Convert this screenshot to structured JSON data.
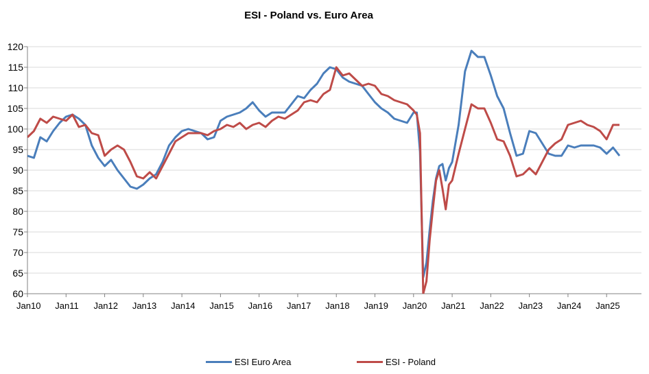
{
  "chart_data": {
    "type": "line",
    "title": "ESI - Poland vs. Euro Area",
    "xlabel": "",
    "ylabel": "",
    "ylim": [
      60,
      120
    ],
    "yticks": [
      60,
      65,
      70,
      75,
      80,
      85,
      90,
      95,
      100,
      105,
      110,
      115,
      120
    ],
    "xticks": [
      "Jan10",
      "Jan11",
      "Jan12",
      "Jan13",
      "Jan14",
      "Jan15",
      "Jan16",
      "Jan17",
      "Jan18",
      "Jan19",
      "Jan20",
      "Jan21",
      "Jan22",
      "Jan23",
      "Jan24",
      "Jan25"
    ],
    "x_start": "2010-01",
    "x_end": "2025-05",
    "grid": "horizontal",
    "legend_position": "bottom",
    "colors": {
      "ESI Euro Area": "#4a7ebb",
      "ESI - Poland": "#be4b48"
    },
    "series": [
      {
        "name": "ESI Euro Area",
        "points": [
          [
            "2010-01",
            93.5
          ],
          [
            "2010-03",
            93
          ],
          [
            "2010-05",
            98
          ],
          [
            "2010-07",
            97
          ],
          [
            "2010-09",
            99.5
          ],
          [
            "2010-11",
            101.5
          ],
          [
            "2011-01",
            103
          ],
          [
            "2011-03",
            103.5
          ],
          [
            "2011-05",
            102.5
          ],
          [
            "2011-07",
            101
          ],
          [
            "2011-09",
            96
          ],
          [
            "2011-11",
            93
          ],
          [
            "2012-01",
            91
          ],
          [
            "2012-03",
            92.5
          ],
          [
            "2012-05",
            90
          ],
          [
            "2012-07",
            88
          ],
          [
            "2012-09",
            86
          ],
          [
            "2012-11",
            85.5
          ],
          [
            "2013-01",
            86.5
          ],
          [
            "2013-03",
            88
          ],
          [
            "2013-05",
            89
          ],
          [
            "2013-07",
            92
          ],
          [
            "2013-09",
            96
          ],
          [
            "2013-11",
            98
          ],
          [
            "2014-01",
            99.5
          ],
          [
            "2014-03",
            100
          ],
          [
            "2014-05",
            99.5
          ],
          [
            "2014-07",
            99
          ],
          [
            "2014-09",
            97.5
          ],
          [
            "2014-11",
            98
          ],
          [
            "2015-01",
            102
          ],
          [
            "2015-03",
            103
          ],
          [
            "2015-05",
            103.5
          ],
          [
            "2015-07",
            104
          ],
          [
            "2015-09",
            105
          ],
          [
            "2015-11",
            106.5
          ],
          [
            "2016-01",
            104.5
          ],
          [
            "2016-03",
            103
          ],
          [
            "2016-05",
            104
          ],
          [
            "2016-07",
            104
          ],
          [
            "2016-09",
            104
          ],
          [
            "2016-11",
            106
          ],
          [
            "2017-01",
            108
          ],
          [
            "2017-03",
            107.5
          ],
          [
            "2017-05",
            109.5
          ],
          [
            "2017-07",
            111
          ],
          [
            "2017-09",
            113.5
          ],
          [
            "2017-11",
            115
          ],
          [
            "2018-01",
            114.5
          ],
          [
            "2018-03",
            112.5
          ],
          [
            "2018-05",
            111.5
          ],
          [
            "2018-07",
            111
          ],
          [
            "2018-09",
            110.5
          ],
          [
            "2018-11",
            108.5
          ],
          [
            "2019-01",
            106.5
          ],
          [
            "2019-03",
            105
          ],
          [
            "2019-05",
            104
          ],
          [
            "2019-07",
            102.5
          ],
          [
            "2019-09",
            102
          ],
          [
            "2019-11",
            101.5
          ],
          [
            "2020-01",
            104
          ],
          [
            "2020-02",
            104
          ],
          [
            "2020-03",
            94.5
          ],
          [
            "2020-04",
            64
          ],
          [
            "2020-05",
            67.5
          ],
          [
            "2020-06",
            75.5
          ],
          [
            "2020-07",
            82.5
          ],
          [
            "2020-08",
            88
          ],
          [
            "2020-09",
            91
          ],
          [
            "2020-10",
            91.5
          ],
          [
            "2020-11",
            87.5
          ],
          [
            "2020-12",
            90.5
          ],
          [
            "2021-01",
            92
          ],
          [
            "2021-03",
            101
          ],
          [
            "2021-05",
            114
          ],
          [
            "2021-07",
            119
          ],
          [
            "2021-09",
            117.5
          ],
          [
            "2021-11",
            117.5
          ],
          [
            "2022-01",
            113
          ],
          [
            "2022-03",
            108
          ],
          [
            "2022-05",
            105
          ],
          [
            "2022-07",
            99
          ],
          [
            "2022-09",
            93.5
          ],
          [
            "2022-11",
            94
          ],
          [
            "2023-01",
            99.5
          ],
          [
            "2023-03",
            99
          ],
          [
            "2023-05",
            96.5
          ],
          [
            "2023-07",
            94
          ],
          [
            "2023-09",
            93.5
          ],
          [
            "2023-11",
            93.5
          ],
          [
            "2024-01",
            96
          ],
          [
            "2024-03",
            95.5
          ],
          [
            "2024-05",
            96
          ],
          [
            "2024-07",
            96
          ],
          [
            "2024-09",
            96
          ],
          [
            "2024-11",
            95.5
          ],
          [
            "2025-01",
            94
          ],
          [
            "2025-03",
            95.5
          ],
          [
            "2025-05",
            93.5
          ]
        ]
      },
      {
        "name": "ESI - Poland",
        "points": [
          [
            "2010-01",
            98
          ],
          [
            "2010-03",
            99.5
          ],
          [
            "2010-05",
            102.5
          ],
          [
            "2010-07",
            101.5
          ],
          [
            "2010-09",
            103
          ],
          [
            "2010-11",
            102.5
          ],
          [
            "2011-01",
            102
          ],
          [
            "2011-03",
            103.5
          ],
          [
            "2011-05",
            100.5
          ],
          [
            "2011-07",
            101
          ],
          [
            "2011-09",
            99
          ],
          [
            "2011-11",
            98.5
          ],
          [
            "2012-01",
            93.5
          ],
          [
            "2012-03",
            95
          ],
          [
            "2012-05",
            96
          ],
          [
            "2012-07",
            95
          ],
          [
            "2012-09",
            92
          ],
          [
            "2012-11",
            88.5
          ],
          [
            "2013-01",
            88
          ],
          [
            "2013-03",
            89.5
          ],
          [
            "2013-05",
            88
          ],
          [
            "2013-07",
            91
          ],
          [
            "2013-09",
            94
          ],
          [
            "2013-11",
            97
          ],
          [
            "2014-01",
            98
          ],
          [
            "2014-03",
            99
          ],
          [
            "2014-05",
            99
          ],
          [
            "2014-07",
            99
          ],
          [
            "2014-09",
            98.5
          ],
          [
            "2014-11",
            99.5
          ],
          [
            "2015-01",
            100
          ],
          [
            "2015-03",
            101
          ],
          [
            "2015-05",
            100.5
          ],
          [
            "2015-07",
            101.5
          ],
          [
            "2015-09",
            100
          ],
          [
            "2015-11",
            101
          ],
          [
            "2016-01",
            101.5
          ],
          [
            "2016-03",
            100.5
          ],
          [
            "2016-05",
            102
          ],
          [
            "2016-07",
            103
          ],
          [
            "2016-09",
            102.5
          ],
          [
            "2016-11",
            103.5
          ],
          [
            "2017-01",
            104.5
          ],
          [
            "2017-03",
            106.5
          ],
          [
            "2017-05",
            107
          ],
          [
            "2017-07",
            106.5
          ],
          [
            "2017-09",
            108.5
          ],
          [
            "2017-11",
            109.5
          ],
          [
            "2018-01",
            115
          ],
          [
            "2018-03",
            113
          ],
          [
            "2018-05",
            113.5
          ],
          [
            "2018-07",
            112
          ],
          [
            "2018-09",
            110.5
          ],
          [
            "2018-11",
            111
          ],
          [
            "2019-01",
            110.5
          ],
          [
            "2019-03",
            108.5
          ],
          [
            "2019-05",
            108
          ],
          [
            "2019-07",
            107
          ],
          [
            "2019-09",
            106.5
          ],
          [
            "2019-11",
            106
          ],
          [
            "2020-01",
            104.5
          ],
          [
            "2020-02",
            103.5
          ],
          [
            "2020-03",
            99
          ],
          [
            "2020-04",
            60
          ],
          [
            "2020-05",
            63
          ],
          [
            "2020-06",
            73
          ],
          [
            "2020-07",
            80.5
          ],
          [
            "2020-08",
            87.5
          ],
          [
            "2020-09",
            90
          ],
          [
            "2020-10",
            85.5
          ],
          [
            "2020-11",
            80.5
          ],
          [
            "2020-12",
            86.5
          ],
          [
            "2021-01",
            87.5
          ],
          [
            "2021-03",
            94
          ],
          [
            "2021-05",
            100
          ],
          [
            "2021-07",
            106
          ],
          [
            "2021-09",
            105
          ],
          [
            "2021-11",
            105
          ],
          [
            "2022-01",
            101.5
          ],
          [
            "2022-03",
            97.5
          ],
          [
            "2022-05",
            97
          ],
          [
            "2022-07",
            93.5
          ],
          [
            "2022-09",
            88.5
          ],
          [
            "2022-11",
            89
          ],
          [
            "2023-01",
            90.5
          ],
          [
            "2023-03",
            89
          ],
          [
            "2023-05",
            92
          ],
          [
            "2023-07",
            95
          ],
          [
            "2023-09",
            96.5
          ],
          [
            "2023-11",
            97.5
          ],
          [
            "2024-01",
            101
          ],
          [
            "2024-03",
            101.5
          ],
          [
            "2024-05",
            102
          ],
          [
            "2024-07",
            101
          ],
          [
            "2024-09",
            100.5
          ],
          [
            "2024-11",
            99.5
          ],
          [
            "2025-01",
            97.5
          ],
          [
            "2025-03",
            101
          ],
          [
            "2025-05",
            101
          ]
        ]
      }
    ]
  }
}
